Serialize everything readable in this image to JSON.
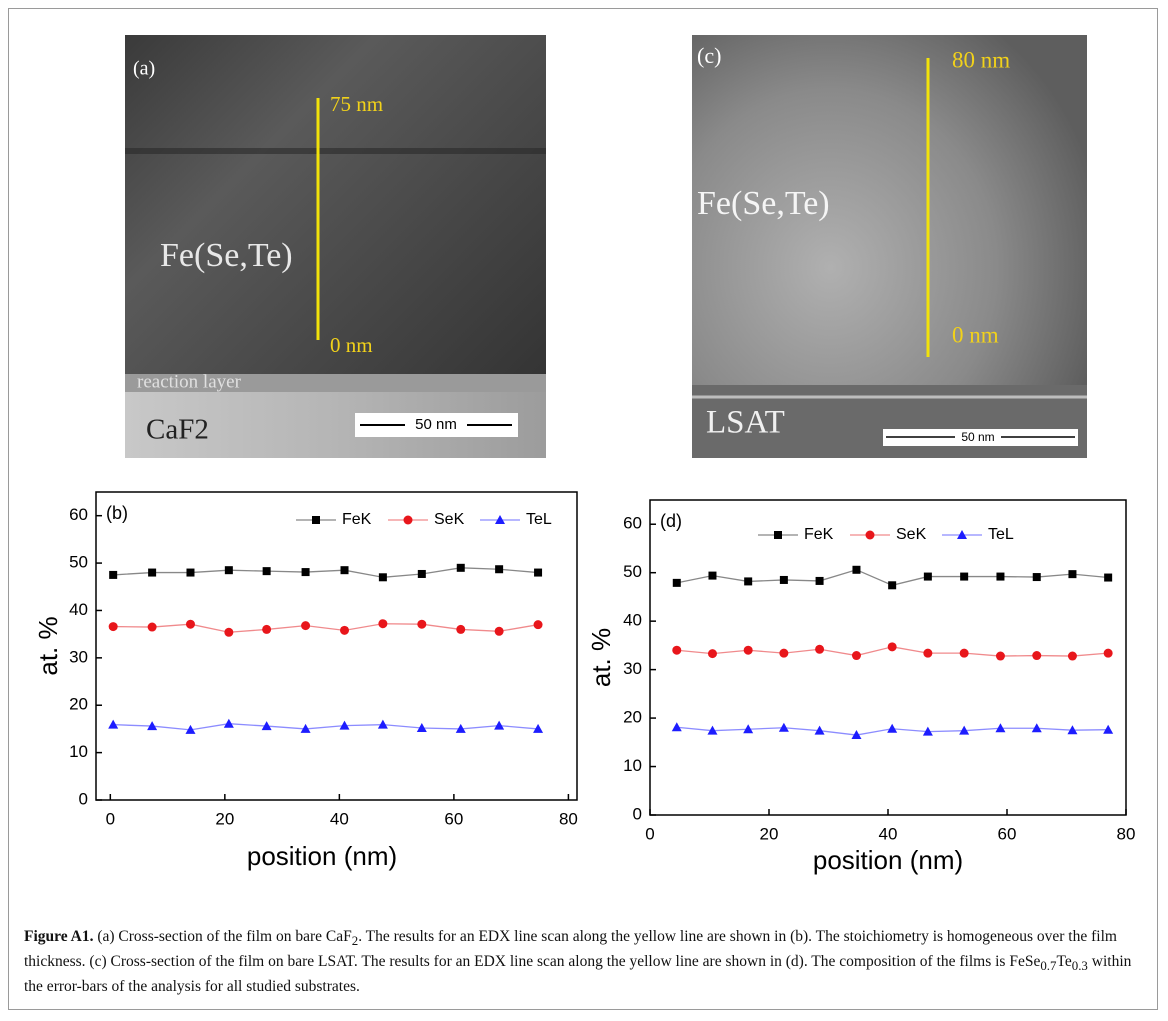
{
  "images": [
    {
      "panel": "(a)",
      "scale_top": "75 nm",
      "scale_bottom": "0 nm",
      "film": "Fe(Se,Te)",
      "interlayer": "reaction layer",
      "substrate": "CaF2",
      "scale_bar": "50 nm"
    },
    {
      "panel": "(c)",
      "scale_top": "80 nm",
      "scale_bottom": "0 nm",
      "film": "Fe(Se,Te)",
      "substrate": "LSAT",
      "scale_bar": "50 nm"
    }
  ],
  "chart_data": [
    {
      "type": "line",
      "panel": "(b)",
      "x_label": "position (nm)",
      "y_label": "at. %",
      "x": [
        0.5,
        7.3,
        14.0,
        20.7,
        27.3,
        34.1,
        40.9,
        47.6,
        54.4,
        61.2,
        67.9,
        74.7
      ],
      "series": [
        {
          "name": "FeK",
          "color": "#000000",
          "line_color": "#888888",
          "marker": "square",
          "values": [
            47.5,
            48.0,
            48.0,
            48.5,
            48.3,
            48.1,
            48.5,
            47.0,
            47.7,
            49.0,
            48.7,
            48.0
          ]
        },
        {
          "name": "SeK",
          "color": "#e8161b",
          "line_color": "#f08a8c",
          "marker": "circle",
          "values": [
            36.6,
            36.5,
            37.1,
            35.4,
            36.0,
            36.8,
            35.8,
            37.2,
            37.1,
            36.0,
            35.6,
            37.0
          ]
        },
        {
          "name": "TeL",
          "color": "#1d1dff",
          "line_color": "#8c8cff",
          "marker": "triangle",
          "values": [
            15.9,
            15.6,
            14.8,
            16.1,
            15.6,
            15.0,
            15.7,
            15.9,
            15.2,
            15.0,
            15.7,
            15.0
          ]
        }
      ],
      "xlim": [
        -2.5,
        81.5
      ],
      "xticks": [
        0,
        20,
        40,
        60,
        80
      ],
      "ylim": [
        0,
        65
      ],
      "yticks": [
        0,
        10,
        20,
        30,
        40,
        50,
        60
      ],
      "grid": false,
      "legend": "top"
    },
    {
      "type": "line",
      "panel": "(d)",
      "x_label": "position (nm)",
      "y_label": "at. %",
      "x": [
        4.5,
        10.5,
        16.5,
        22.5,
        28.5,
        34.7,
        40.7,
        46.7,
        52.8,
        58.9,
        65.0,
        71.0,
        77.0
      ],
      "series": [
        {
          "name": "FeK",
          "color": "#000000",
          "line_color": "#888888",
          "marker": "square",
          "values": [
            47.9,
            49.4,
            48.2,
            48.5,
            48.3,
            50.6,
            47.4,
            49.2,
            49.2,
            49.2,
            49.1,
            49.7,
            49.0
          ]
        },
        {
          "name": "SeK",
          "color": "#e8161b",
          "line_color": "#f08a8c",
          "marker": "circle",
          "values": [
            34.0,
            33.3,
            34.0,
            33.4,
            34.2,
            32.9,
            34.7,
            33.4,
            33.4,
            32.8,
            32.9,
            32.8,
            33.4
          ]
        },
        {
          "name": "TeL",
          "color": "#1d1dff",
          "line_color": "#8c8cff",
          "marker": "triangle",
          "values": [
            18.1,
            17.4,
            17.7,
            18.0,
            17.4,
            16.5,
            17.8,
            17.2,
            17.4,
            17.9,
            17.9,
            17.5,
            17.6
          ]
        }
      ],
      "xlim": [
        0,
        80
      ],
      "xticks": [
        0,
        20,
        40,
        60,
        80
      ],
      "ylim": [
        0,
        65
      ],
      "yticks": [
        0,
        10,
        20,
        30,
        40,
        50,
        60
      ],
      "grid": false,
      "legend": "top"
    }
  ],
  "caption": {
    "label": "Figure A1.",
    "parts": [
      " (a) Cross-section of the film on bare CaF",
      "2",
      ". The results for an EDX line scan along the yellow line are shown in (b). The stoichiometry is homogeneous over the film thickness. (c) Cross-section of the film on bare LSAT. The results for an EDX line scan along the yellow line are shown in (d). The composition of the films is FeSe",
      "0.7",
      "Te",
      "0.3",
      " within the error-bars of the analysis for all studied substrates."
    ]
  }
}
